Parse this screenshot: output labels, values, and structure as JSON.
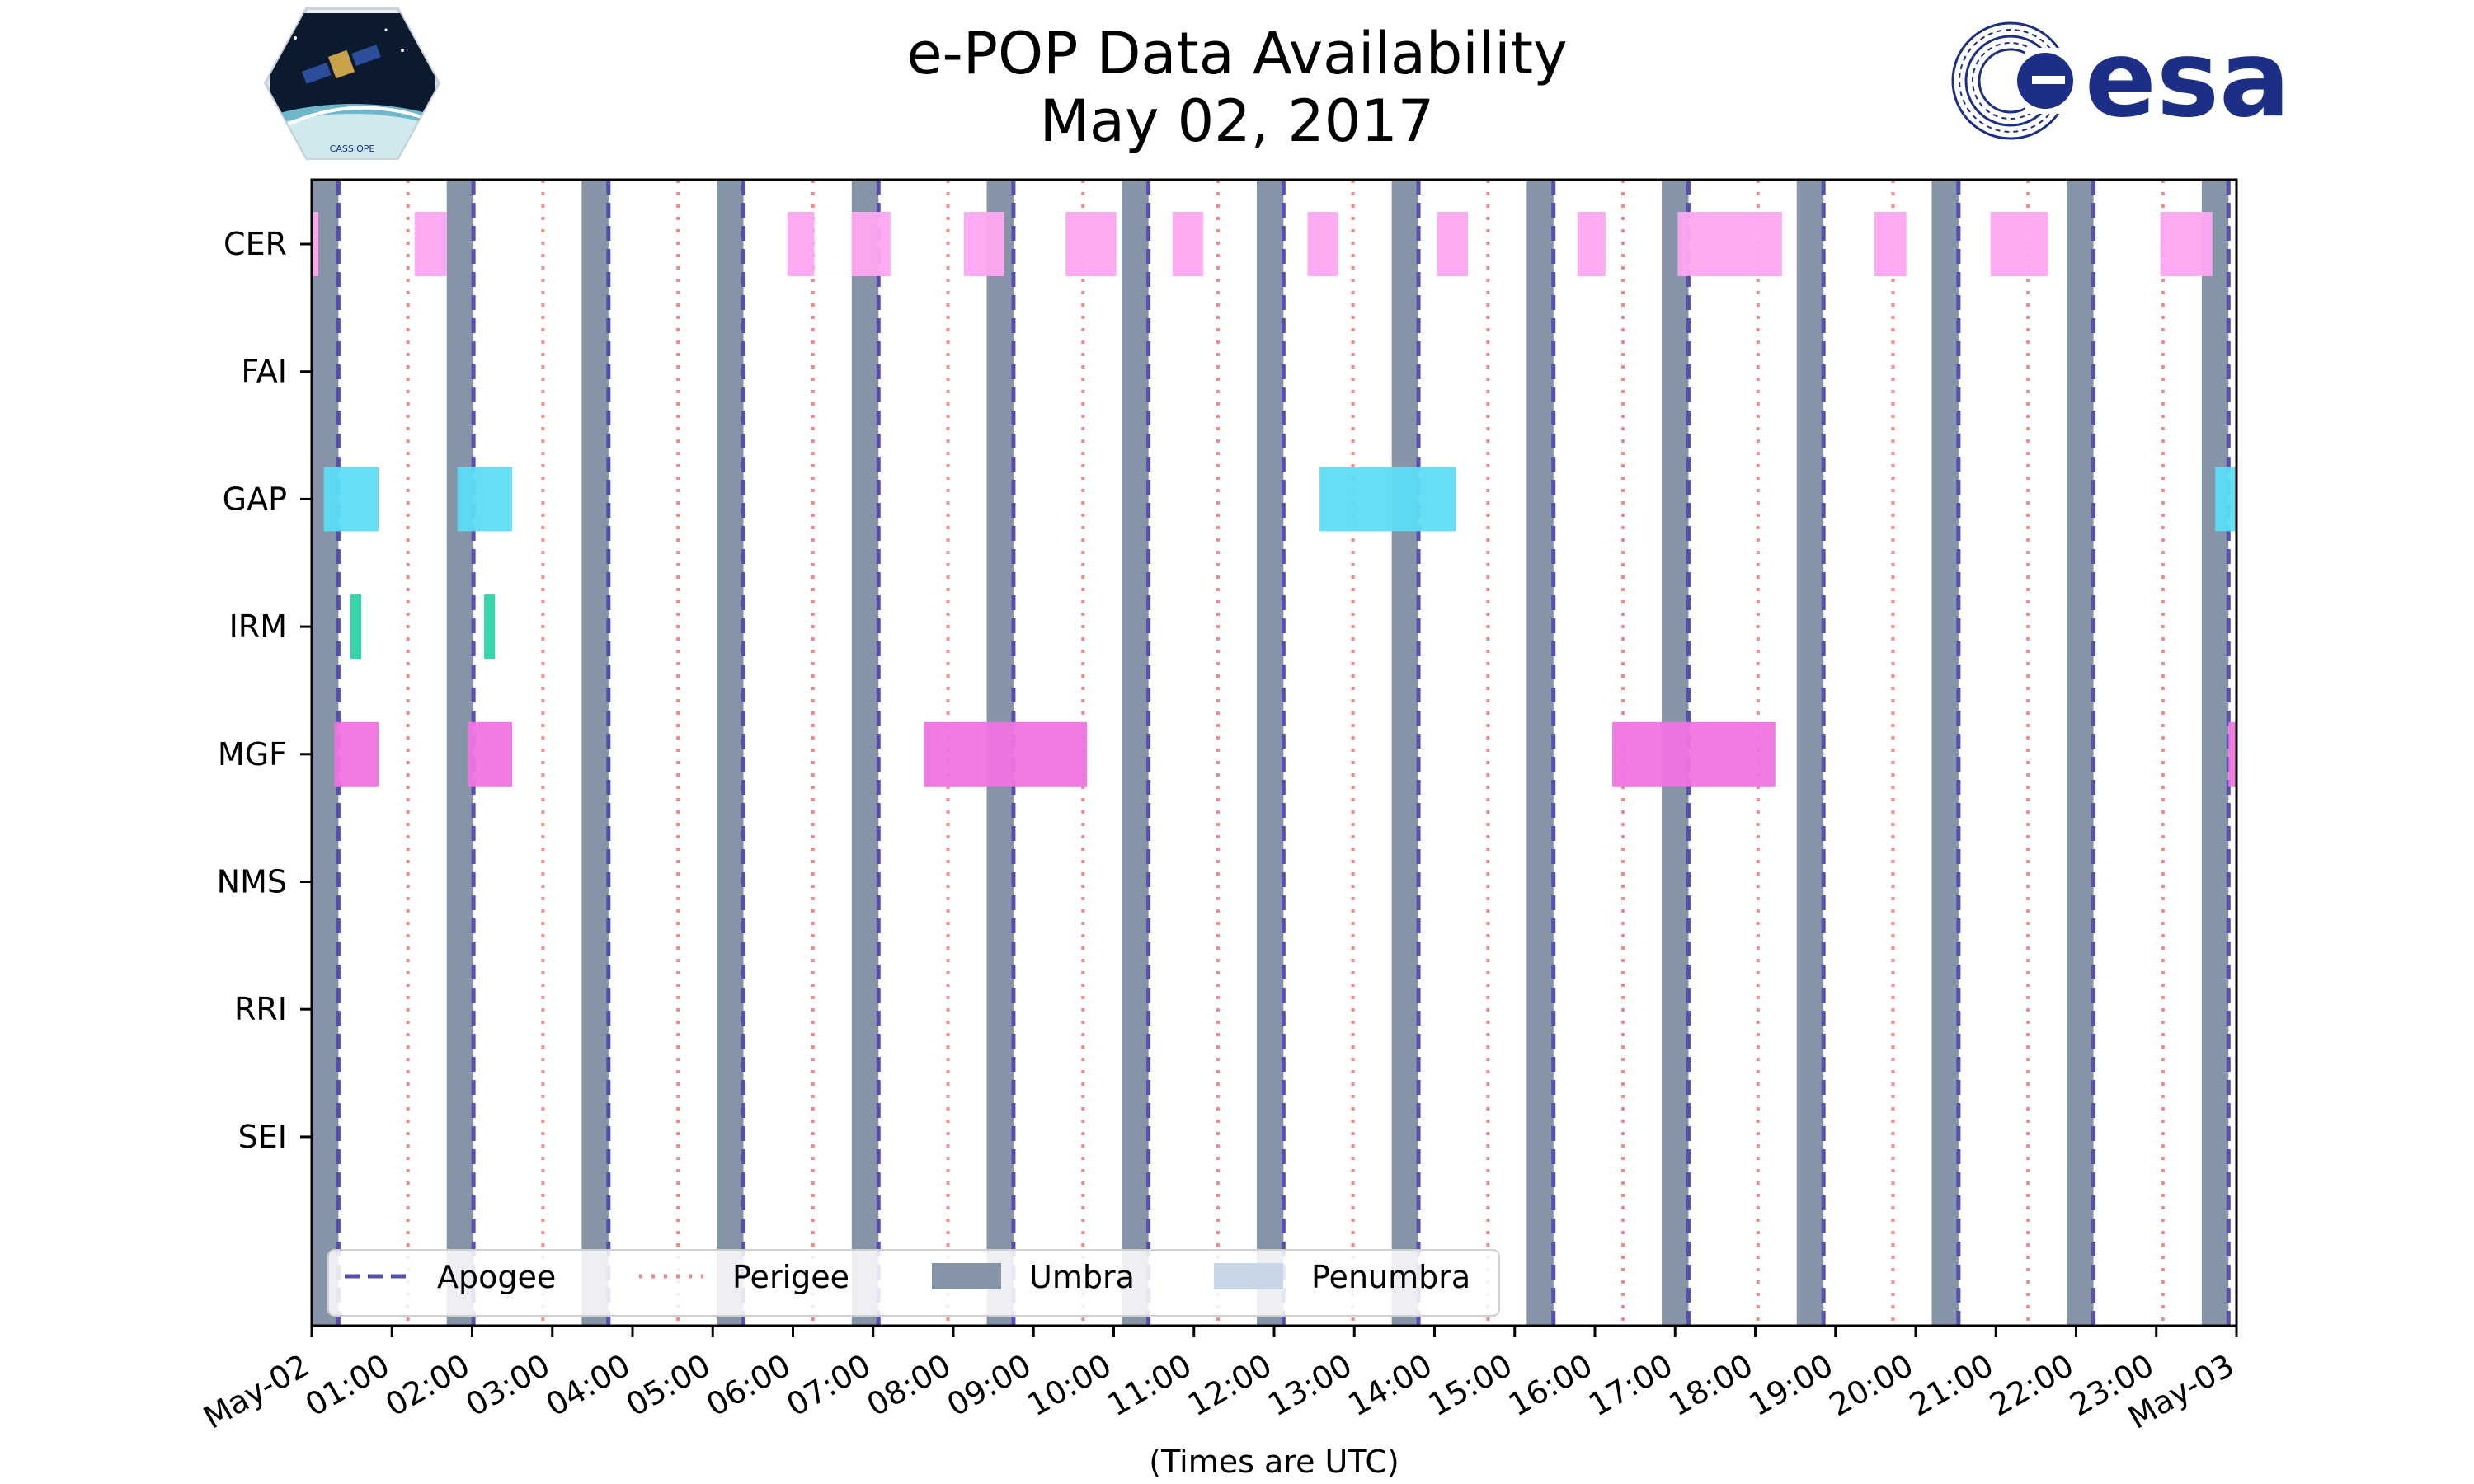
{
  "header": {
    "title_line1": "e-POP Data Availability",
    "title_line2": "May 02, 2017",
    "left_logo_label": "CASSIOPE",
    "right_logo_text": "esa"
  },
  "colors": {
    "umbra": "#8594a6",
    "penumbra": "#c8d6e8",
    "apogee": "#5550b0",
    "perigee": "#f08a8a",
    "CER": "#ffa6f2",
    "GAP": "#5ddcf6",
    "IRM": "#2ad4a8",
    "MGF": "#f073e2",
    "esa_blue": "#1d2e86"
  },
  "chart_data": {
    "type": "timeline",
    "xlabel": "(Times are UTC)",
    "xlim": [
      "2017-05-02 00:00",
      "2017-05-03 00:00"
    ],
    "x_tick_labels": [
      "May-02",
      "01:00",
      "02:00",
      "03:00",
      "04:00",
      "05:00",
      "06:00",
      "07:00",
      "08:00",
      "09:00",
      "10:00",
      "11:00",
      "12:00",
      "13:00",
      "14:00",
      "15:00",
      "16:00",
      "17:00",
      "18:00",
      "19:00",
      "20:00",
      "21:00",
      "22:00",
      "23:00",
      "May-03"
    ],
    "instruments": [
      "CER",
      "FAI",
      "GAP",
      "IRM",
      "MGF",
      "NMS",
      "RRI",
      "SEI"
    ],
    "umbra": [
      [
        "00:00",
        "00:20"
      ],
      [
        "01:41",
        "02:01"
      ],
      [
        "03:22",
        "03:42"
      ],
      [
        "05:03",
        "05:23"
      ],
      [
        "06:44",
        "07:04"
      ],
      [
        "08:25",
        "08:45"
      ],
      [
        "10:06",
        "10:26"
      ],
      [
        "11:47",
        "12:07"
      ],
      [
        "13:28",
        "13:48"
      ],
      [
        "15:09",
        "15:29"
      ],
      [
        "16:50",
        "17:10"
      ],
      [
        "18:31",
        "18:51"
      ],
      [
        "20:12",
        "20:32"
      ],
      [
        "21:53",
        "22:13"
      ],
      [
        "23:34",
        "23:54"
      ]
    ],
    "penumbra": [],
    "apogee": [
      "00:20",
      "02:01",
      "03:42",
      "05:23",
      "07:04",
      "08:45",
      "10:26",
      "12:07",
      "13:48",
      "15:29",
      "17:10",
      "18:51",
      "20:32",
      "22:13",
      "23:54"
    ],
    "perigee": [
      "01:12",
      "02:53",
      "04:34",
      "06:15",
      "07:56",
      "09:37",
      "11:18",
      "12:59",
      "14:40",
      "16:21",
      "18:02",
      "19:43",
      "21:24",
      "23:05"
    ],
    "availability": {
      "CER": [
        [
          "00:00",
          "00:05"
        ],
        [
          "01:17",
          "01:41"
        ],
        [
          "05:56",
          "06:16"
        ],
        [
          "06:44",
          "07:13"
        ],
        [
          "08:08",
          "08:38"
        ],
        [
          "09:24",
          "10:02"
        ],
        [
          "10:44",
          "11:07"
        ],
        [
          "12:25",
          "12:48"
        ],
        [
          "14:02",
          "14:25"
        ],
        [
          "15:47",
          "16:08"
        ],
        [
          "17:02",
          "18:20"
        ],
        [
          "19:29",
          "19:53"
        ],
        [
          "20:56",
          "21:39"
        ],
        [
          "23:03",
          "23:42"
        ]
      ],
      "FAI": [],
      "GAP": [
        [
          "00:09",
          "00:50"
        ],
        [
          "01:49",
          "02:30"
        ],
        [
          "12:34",
          "14:16"
        ],
        [
          "23:44",
          "24:00"
        ]
      ],
      "IRM": [
        [
          "00:29",
          "00:37"
        ],
        [
          "02:09",
          "02:17"
        ]
      ],
      "MGF": [
        [
          "00:17",
          "00:50"
        ],
        [
          "01:57",
          "02:30"
        ],
        [
          "07:38",
          "09:40"
        ],
        [
          "16:13",
          "18:15"
        ],
        [
          "23:54",
          "24:00"
        ]
      ],
      "NMS": [],
      "RRI": [],
      "SEI": []
    },
    "legend": {
      "placement": "lower-left",
      "entries": [
        "Apogee",
        "Perigee",
        "Umbra",
        "Penumbra"
      ]
    }
  }
}
